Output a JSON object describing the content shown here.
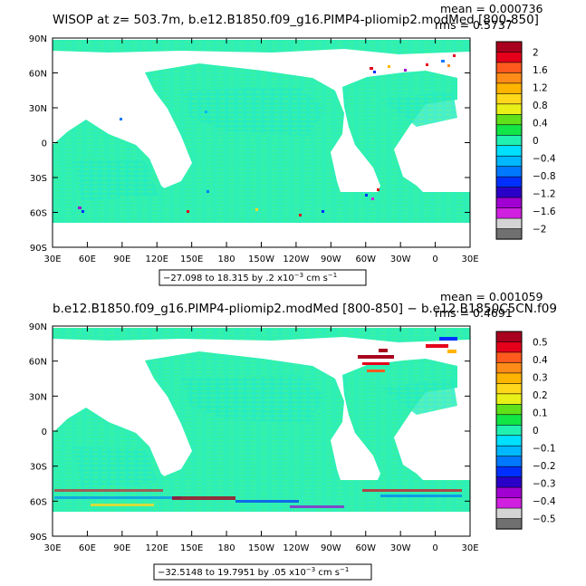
{
  "chart_data": [
    {
      "type": "heatmap",
      "title": "WISOP at z= 503.7m, b.e12.B1850.f09_g16.PIMP4-pliomip2.modMed [800-850]",
      "stats": {
        "mean": "mean = 0.000736",
        "rms": "rms = 0.5737"
      },
      "range_label_pre": "−27.098 to 18.315 by .2 x10",
      "range_exp": "−3",
      "range_unit_pre": " cm s",
      "range_unit_exp": "−1",
      "y_ticks": [
        "90N",
        "60N",
        "30N",
        "0",
        "30S",
        "60S",
        "90S"
      ],
      "x_ticks": [
        "30E",
        "60E",
        "90E",
        "120E",
        "150E",
        "180",
        "150W",
        "120W",
        "90W",
        "60W",
        "30W",
        "0",
        "30E"
      ],
      "colorbar_labels": [
        "2",
        "1.6",
        "1.2",
        "0.8",
        "0.4",
        "0",
        "−0.4",
        "−0.8",
        "−1.2",
        "−1.6",
        "−2"
      ],
      "colorbar_levels": [
        2,
        1.6,
        1.2,
        0.8,
        0.4,
        0,
        -0.4,
        -0.8,
        -1.2,
        -1.6,
        -2
      ],
      "xlim": [
        30,
        390
      ],
      "ylim": [
        -90,
        90
      ]
    },
    {
      "type": "heatmap",
      "title": "b.e12.B1850.f09_g16.PIMP4-pliomip2.modMed [800-850] − b.e12.B1850C5CN.f09",
      "stats": {
        "mean": "mean = 0.001059",
        "rms": "rms = 0.4691"
      },
      "range_label_pre": "−32.5148 to 19.7951 by .05 x10",
      "range_exp": "−3",
      "range_unit_pre": " cm s",
      "range_unit_exp": "−1",
      "y_ticks": [
        "90N",
        "60N",
        "30N",
        "0",
        "30S",
        "60S",
        "90S"
      ],
      "x_ticks": [
        "30E",
        "60E",
        "90E",
        "120E",
        "150E",
        "180",
        "150W",
        "120W",
        "90W",
        "60W",
        "30W",
        "0",
        "30E"
      ],
      "colorbar_labels": [
        "0.5",
        "0.4",
        "0.3",
        "0.2",
        "0.1",
        "0",
        "−0.1",
        "−0.2",
        "−0.3",
        "−0.4",
        "−0.5"
      ],
      "colorbar_levels": [
        0.5,
        0.4,
        0.3,
        0.2,
        0.1,
        0,
        -0.1,
        -0.2,
        -0.3,
        -0.4,
        -0.5
      ],
      "xlim": [
        30,
        390
      ],
      "ylim": [
        -90,
        90
      ]
    }
  ],
  "colors": {
    "ocean_base": "#2EEFB6",
    "ocean_alt": "#3CF29A",
    "land": "#ffffff",
    "colorbar": [
      "#a8001e",
      "#e4001a",
      "#ff5a1e",
      "#ff8c18",
      "#ffb400",
      "#ffd81c",
      "#e8f018",
      "#5fe01a",
      "#12e646",
      "#20f0b0",
      "#00e0ff",
      "#00b8ff",
      "#0078ff",
      "#0030ff",
      "#2a00c8",
      "#a000d2",
      "#d020e0",
      "#d4d4d4",
      "#707070"
    ]
  }
}
